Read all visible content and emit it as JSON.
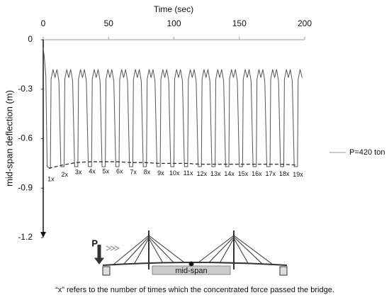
{
  "chart_data": {
    "type": "line",
    "x_label": "Time (sec)",
    "y_label": "mid-span deflection (m)",
    "xlim": [
      0,
      200
    ],
    "xticks": [
      0,
      50,
      100,
      150,
      200
    ],
    "ylim": [
      -1.2,
      0
    ],
    "yticks": [
      0,
      -0.3,
      -0.6,
      -0.9,
      -1.2
    ],
    "legend": "right",
    "series": [
      {
        "name": "P=420 ton",
        "color": "#555555",
        "x": [
          0,
          1,
          2,
          3,
          5.5,
          6,
          7.5,
          9,
          10.5,
          12,
          13.5,
          16,
          16.5,
          18,
          19.5,
          21,
          22.5,
          24,
          26.5,
          27,
          28.5,
          30,
          31.5,
          33,
          34.5,
          37,
          37.5,
          39,
          40.5,
          42,
          43.5,
          45,
          47.5,
          48,
          49.5,
          51,
          52.5,
          54,
          55.5,
          58,
          58.5,
          60,
          61.5,
          63,
          64.5,
          66,
          68.5,
          69,
          70.5,
          72,
          73.5,
          75,
          76.5,
          79,
          79.5,
          81,
          82.5,
          84,
          85.5,
          87,
          89.5,
          90,
          91.5,
          93,
          94.5,
          96,
          97.5,
          100,
          100.5,
          102,
          103.5,
          105,
          106.5,
          108,
          110.5,
          111,
          112.5,
          114,
          115.5,
          117,
          118.5,
          121,
          121.5,
          123,
          124.5,
          126,
          127.5,
          129,
          131.5,
          132,
          133.5,
          135,
          136.5,
          138,
          139.5,
          142,
          142.5,
          144,
          145.5,
          147,
          148.5,
          150,
          152.5,
          153,
          154.5,
          156,
          157.5,
          159,
          160.5,
          163,
          163.5,
          165,
          166.5,
          168,
          169.5,
          171,
          173.5,
          174,
          175.5,
          177,
          178.5,
          180,
          181.5,
          184,
          184.5,
          186,
          187.5,
          189,
          190.5,
          192,
          194.5,
          195,
          196.5,
          198
        ],
        "values": [
          -0.05,
          -0.12,
          -0.22,
          -0.77,
          -0.78,
          -0.24,
          -0.18,
          -0.23,
          -0.18,
          -0.25,
          -0.77,
          -0.77,
          -0.24,
          -0.18,
          -0.23,
          -0.18,
          -0.25,
          -0.77,
          -0.77,
          -0.24,
          -0.18,
          -0.23,
          -0.18,
          -0.25,
          -0.77,
          -0.77,
          -0.24,
          -0.18,
          -0.23,
          -0.18,
          -0.25,
          -0.77,
          -0.77,
          -0.24,
          -0.18,
          -0.23,
          -0.18,
          -0.25,
          -0.77,
          -0.77,
          -0.24,
          -0.18,
          -0.23,
          -0.18,
          -0.25,
          -0.77,
          -0.77,
          -0.24,
          -0.18,
          -0.23,
          -0.18,
          -0.25,
          -0.77,
          -0.77,
          -0.24,
          -0.18,
          -0.23,
          -0.18,
          -0.25,
          -0.77,
          -0.77,
          -0.24,
          -0.18,
          -0.23,
          -0.18,
          -0.25,
          -0.77,
          -0.77,
          -0.24,
          -0.18,
          -0.23,
          -0.18,
          -0.25,
          -0.77,
          -0.77,
          -0.24,
          -0.18,
          -0.23,
          -0.18,
          -0.25,
          -0.77,
          -0.77,
          -0.24,
          -0.18,
          -0.23,
          -0.18,
          -0.25,
          -0.77,
          -0.77,
          -0.24,
          -0.18,
          -0.23,
          -0.18,
          -0.25,
          -0.77,
          -0.77,
          -0.24,
          -0.18,
          -0.23,
          -0.18,
          -0.25,
          -0.77,
          -0.77,
          -0.24,
          -0.18,
          -0.23,
          -0.18,
          -0.25,
          -0.77,
          -0.77,
          -0.24,
          -0.18,
          -0.23,
          -0.18,
          -0.25,
          -0.77,
          -0.77,
          -0.24,
          -0.18,
          -0.23,
          -0.18,
          -0.25,
          -0.77,
          -0.77,
          -0.24,
          -0.18,
          -0.23,
          -0.18,
          -0.25,
          -0.77,
          -0.77,
          -0.24,
          -0.18,
          -0.23
        ]
      }
    ],
    "envelope": {
      "color": "#333333",
      "x": [
        4.25,
        14.75,
        25.25,
        35.75,
        46.25,
        56.75,
        67.25,
        77.75,
        88.25,
        98.75,
        109.25,
        119.75,
        130.25,
        140.75,
        151.25,
        161.75,
        172.25,
        182.75,
        193.25
      ],
      "values": [
        -0.78,
        -0.76,
        -0.745,
        -0.74,
        -0.74,
        -0.74,
        -0.745,
        -0.745,
        -0.75,
        -0.75,
        -0.75,
        -0.755,
        -0.755,
        -0.755,
        -0.755,
        -0.755,
        -0.755,
        -0.755,
        -0.76
      ],
      "labels": [
        "1x",
        "2x",
        "3x",
        "4x",
        "5x",
        "6x",
        "7x",
        "8x",
        "9x",
        "10x",
        "11x",
        "12x",
        "13x",
        "14x",
        "15x",
        "16x",
        "17x",
        "18x",
        "19x"
      ]
    }
  },
  "diagram": {
    "load_label": "P",
    "point_label": "mid-span"
  },
  "caption": "“x” refers to the number of times which the concentrated force passed the bridge."
}
